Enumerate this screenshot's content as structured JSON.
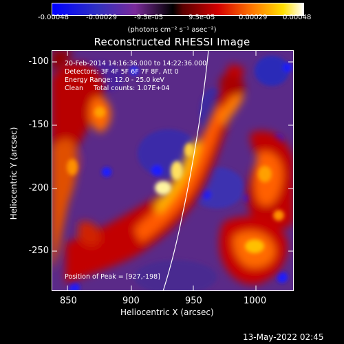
{
  "colorbar": {
    "ticks": [
      "-0.00048",
      "-0.00029",
      "-9.5e-05",
      "9.5e-05",
      "0.00029",
      "0.00048"
    ],
    "units": "(photons cm⁻² s⁻¹ asec⁻²)"
  },
  "title": "Reconstructed RHESSI Image",
  "info": {
    "time": "20-Feb-2014 14:16:36.000 to 14:22:36.000",
    "detectors": "Detectors: 3F 4F 5F 6F 7F 8F, Att 0",
    "energy": "Energy Range: 12.0 - 25.0 keV",
    "clean": "Clean     Total counts: 1.07E+04",
    "peak": "Position of Peak = [927,-198]"
  },
  "axes": {
    "xlabel": "Heliocentric X (arcsec)",
    "ylabel": "Heliocentric Y (arcsec)",
    "xticks": [
      "850",
      "900",
      "950",
      "1000"
    ],
    "yticks": [
      "-100",
      "-150",
      "-200",
      "-250"
    ]
  },
  "footer": {
    "timestamp": "13-May-2022 02:45"
  }
}
